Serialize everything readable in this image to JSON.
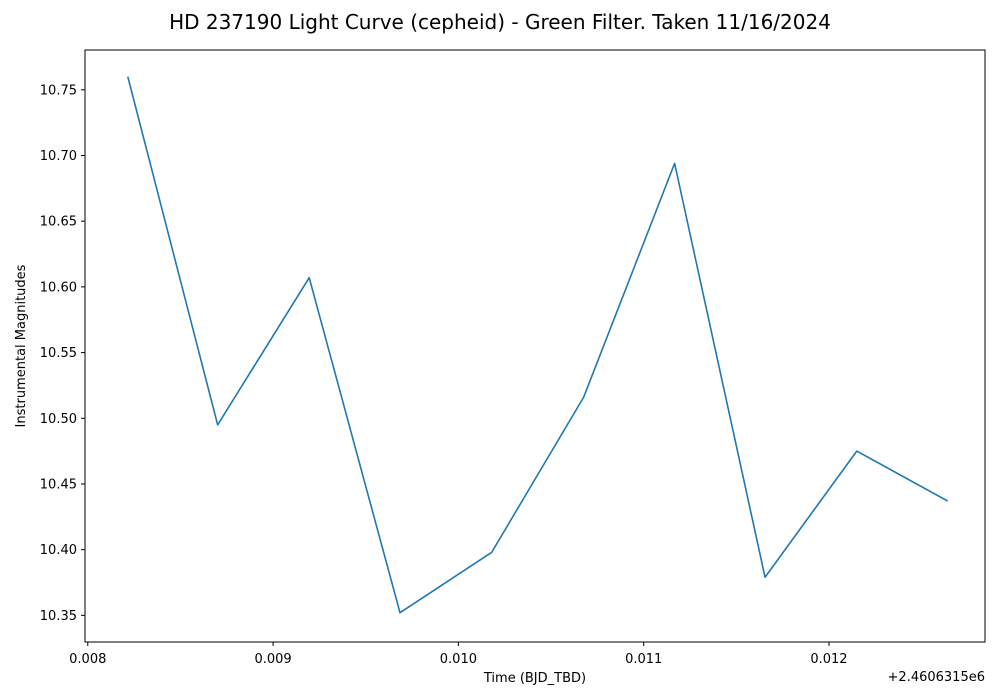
{
  "chart_data": {
    "type": "line",
    "title": "HD 237190 Light Curve (cepheid) - Green Filter. Taken 11/16/2024",
    "xlabel": "Time (BJD_TBD)",
    "ylabel": "Instrumental Magnitudes",
    "x_offset_label": "+2.4606315e6",
    "x_ticks": [
      0.008,
      0.009,
      0.01,
      0.011,
      0.012
    ],
    "x_tick_labels": [
      "0.008",
      "0.009",
      "0.010",
      "0.011",
      "0.012"
    ],
    "y_ticks": [
      10.35,
      10.4,
      10.45,
      10.5,
      10.55,
      10.6,
      10.65,
      10.7,
      10.75
    ],
    "y_tick_labels": [
      "10.35",
      "10.40",
      "10.45",
      "10.50",
      "10.55",
      "10.60",
      "10.65",
      "10.70",
      "10.75"
    ],
    "xlim": [
      0.007985,
      0.012842
    ],
    "ylim": [
      10.3297,
      10.7803
    ],
    "grid": false,
    "series": [
      {
        "color": "#1f77b4",
        "x": [
          0.008216,
          0.008701,
          0.009195,
          0.009685,
          0.01018,
          0.010676,
          0.011167,
          0.011655,
          0.01215,
          0.012641
        ],
        "y": [
          10.76,
          10.495,
          10.607,
          10.352,
          10.398,
          10.516,
          10.694,
          10.379,
          10.475,
          10.437
        ]
      }
    ]
  }
}
